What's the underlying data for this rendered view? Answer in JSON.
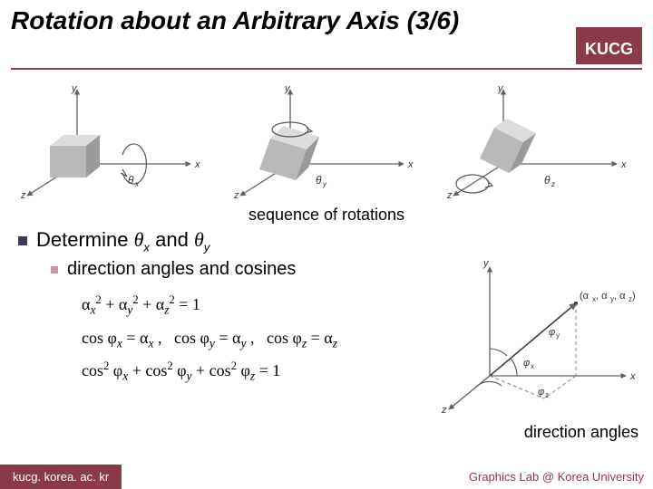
{
  "header": {
    "title": "Rotation about an Arbitrary Axis (3/6)",
    "badge": "KUCG"
  },
  "captions": {
    "sequence": "sequence of rotations",
    "direction_angles": "direction angles"
  },
  "bullets": {
    "main_prefix": "Determine ",
    "theta_x": "θ",
    "theta_x_sub": "x",
    "and": " and ",
    "theta_y": "θ",
    "theta_y_sub": "y",
    "sub1": "direction angles and cosines"
  },
  "formulas": {
    "line1": "α<sub>x</sub><sup>2</sup> + α<sub>y</sub><sup>2</sup> + α<sub>z</sub><sup>2</sup> = 1",
    "line2": "cos φ<sub>x</sub> = α<sub>x</sub> ,&nbsp;&nbsp; cos φ<sub>y</sub> = α<sub>y</sub> ,&nbsp;&nbsp; cos φ<sub>z</sub> = α<sub>z</sub>",
    "line3": "cos<sup>2</sup> φ<sub>x</sub> + cos<sup>2</sup> φ<sub>y</sub> + cos<sup>2</sup> φ<sub>z</sub> = 1"
  },
  "rotation_figs": {
    "axis_labels": {
      "x": "x",
      "y": "y",
      "z": "z"
    },
    "cube_color": "#b8b8b8",
    "cube_top": "#dcdcdc",
    "cube_side": "#9a9a9a",
    "axis_color": "#606060",
    "theta_labels": [
      "θx",
      "θy",
      "θz"
    ]
  },
  "direction_fig": {
    "axis_labels": {
      "x": "x",
      "y": "y",
      "z": "z"
    },
    "vector_label": "(αx, αy, αz)",
    "phi_labels": [
      "φx",
      "φy",
      "φz"
    ],
    "axis_color": "#606060",
    "dash_color": "#888888",
    "arc_color": "#555555"
  },
  "footer": {
    "left": "kucg. korea. ac. kr",
    "right": "Graphics Lab @ Korea University"
  },
  "colors": {
    "brand": "#8b3a4a",
    "text": "#000000",
    "bullet_main": "#3b3b5a",
    "bullet_sub": "#c49aa4"
  }
}
